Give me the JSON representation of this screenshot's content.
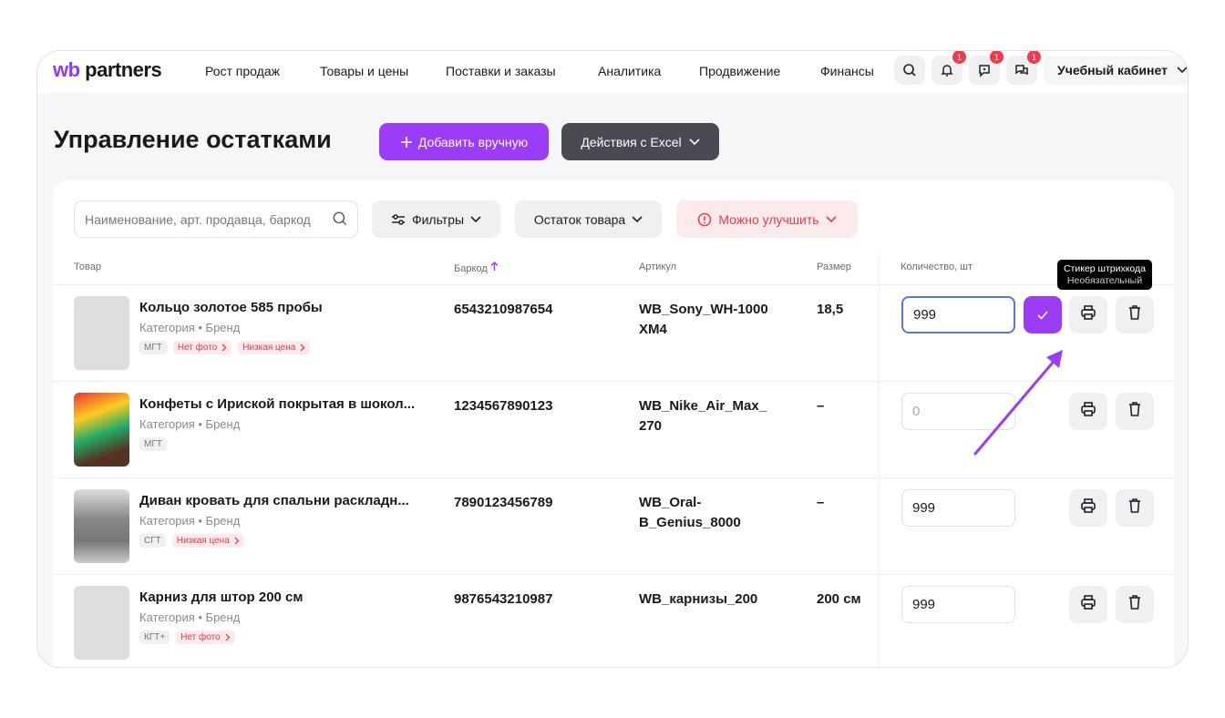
{
  "header": {
    "logo_wb": "wb",
    "logo_rest": " partners",
    "nav": [
      "Рост продаж",
      "Товары и цены",
      "Поставки и заказы",
      "Аналитика",
      "Продвижение",
      "Финансы"
    ],
    "badges": [
      "1",
      "1",
      "1"
    ],
    "account": "Учебный кабинет"
  },
  "page": {
    "title": "Управление остатками",
    "add_button": "Добавить вручную",
    "excel_button": "Действия с Excel"
  },
  "toolbar": {
    "search_placeholder": "Наименование, арт. продавца, баркод",
    "filters": "Фильтры",
    "stock": "Остаток товара",
    "improve": "Можно улучшить"
  },
  "table": {
    "columns": [
      "Товар",
      "Баркод",
      "Артикул",
      "Размер",
      "Количество, шт"
    ],
    "rows": [
      {
        "name": "Кольцо золотое 585 пробы",
        "category": "Категория • Бренд",
        "tags": [
          "МГТ",
          "Нет фото",
          "Низкая цена"
        ],
        "barcode": "6543210987654",
        "article": [
          "WB_Sony_WH-1000",
          "XM4"
        ],
        "size": "18,5",
        "qty": "999"
      },
      {
        "name": "Конфеты с Ириской покрытая в шокол...",
        "category": "Категория • Бренд",
        "tags": [
          "МГТ"
        ],
        "barcode": "1234567890123",
        "article": [
          "WB_Nike_Air_Max_",
          "270"
        ],
        "size": "–",
        "qty": "0"
      },
      {
        "name": "Диван кровать для спальни раскладн...",
        "category": "Категория • Бренд",
        "tags": [
          "СГТ",
          "Низкая цена"
        ],
        "barcode": "7890123456789",
        "article": [
          "WB_Oral-",
          "B_Genius_8000"
        ],
        "size": "–",
        "qty": "999"
      },
      {
        "name": "Карниз для штор 200 см",
        "category": "Категория • Бренд",
        "tags": [
          "КГТ+",
          "Нет фото"
        ],
        "barcode": "9876543210987",
        "article": [
          "WB_карнизы_200",
          ""
        ],
        "size": "200 см",
        "qty": "999"
      }
    ]
  },
  "tooltip": {
    "title": "Стикер штрихкода",
    "subtitle": "Необязательный"
  },
  "colors": {
    "accent": "#9b3cf7",
    "danger": "#f0394a",
    "dark_button": "#4a4a54"
  }
}
